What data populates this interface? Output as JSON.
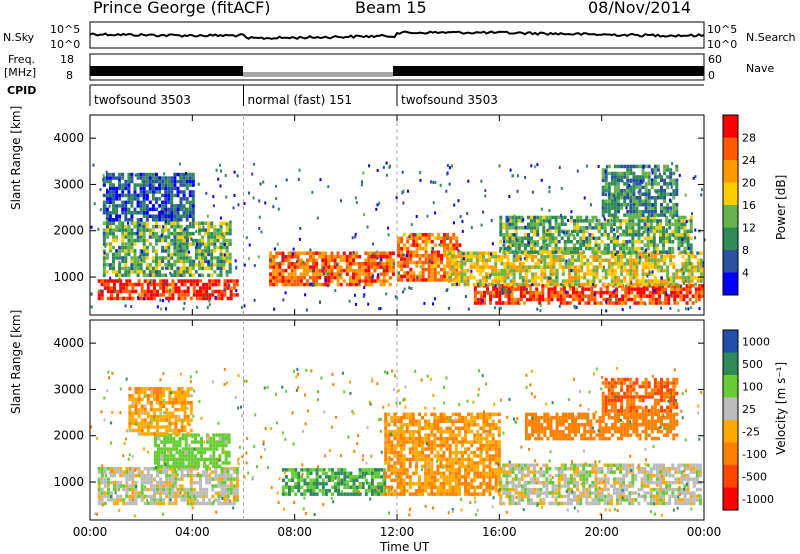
{
  "header": {
    "station": "Prince George (fitACF)",
    "beam": "Beam 15",
    "date": "08/Nov/2014"
  },
  "left_labels": {
    "nsky": "N.Sky",
    "freq_line1": "Freq.",
    "freq_line2": "[MHz]",
    "cpid": "CPID"
  },
  "right_labels": {
    "nsearch": "N.Search",
    "nave": "Nave"
  },
  "noise_panel": {
    "y_ticks": [
      "10^5",
      "10^0"
    ],
    "right_ticks": [
      "10^5",
      "10^0"
    ]
  },
  "freq_panel": {
    "left_ticks": [
      "18",
      "8"
    ],
    "right_ticks": [
      "60",
      "0"
    ]
  },
  "cpid_segments": [
    {
      "label": "twofsound 3503",
      "start": 0,
      "end": 6
    },
    {
      "label": "normal (fast) 151",
      "start": 6,
      "end": 12
    },
    {
      "label": "twofsound 3503",
      "start": 12,
      "end": 24
    }
  ],
  "x_ticks": [
    "00:00",
    "04:00",
    "08:00",
    "12:00",
    "16:00",
    "20:00",
    "00:00"
  ],
  "x_label": "Time UT",
  "y_ticks": [
    "4000",
    "3000",
    "2000",
    "1000"
  ],
  "power_panel": {
    "ylabel": "Slant Range [km]",
    "cbar_title": "Power [dB]",
    "cbar_ticks": [
      "28",
      "24",
      "20",
      "16",
      "12",
      "8",
      "4"
    ],
    "cbar_colors": [
      "#ff0000",
      "#ff5a00",
      "#ff9900",
      "#ffcc00",
      "#66b34d",
      "#2e8b57",
      "#2952a3",
      "#0000ff"
    ]
  },
  "velocity_panel": {
    "ylabel": "Slant Range [km]",
    "cbar_title": "Velocity [m s⁻¹]",
    "cbar_ticks": [
      "1000",
      "500",
      "100",
      "25",
      "-25",
      "-100",
      "-500",
      "-1000"
    ],
    "cbar_colors": [
      "#1f4fa8",
      "#2e8b57",
      "#66cc33",
      "#bbbbbb",
      "#ffaa00",
      "#ff7f00",
      "#ff4500",
      "#ff0000"
    ]
  },
  "chart_data": {
    "type": "heatmap",
    "x_range": [
      "00:00",
      "24:00"
    ],
    "y_range_km": [
      180,
      4500
    ],
    "panels": [
      {
        "name": "Power",
        "units": "dB",
        "range": [
          0,
          30
        ],
        "bands": [
          {
            "t0": 0.3,
            "t1": 5.8,
            "r0": 500,
            "r1": 900,
            "value": 27
          },
          {
            "t0": 0.5,
            "t1": 5.5,
            "r0": 1000,
            "r1": 2200,
            "value": 12
          },
          {
            "t0": 0.5,
            "t1": 4.0,
            "r0": 2200,
            "r1": 3200,
            "value": 6
          },
          {
            "t0": 7.0,
            "t1": 11.8,
            "r0": 800,
            "r1": 1500,
            "value": 24
          },
          {
            "t0": 12.0,
            "t1": 14.5,
            "r0": 900,
            "r1": 1900,
            "value": 23
          },
          {
            "t0": 15.0,
            "t1": 23.9,
            "r0": 400,
            "r1": 800,
            "value": 26
          },
          {
            "t0": 14.0,
            "t1": 23.9,
            "r0": 800,
            "r1": 1500,
            "value": 17
          },
          {
            "t0": 16.0,
            "t1": 23.5,
            "r0": 1500,
            "r1": 2300,
            "value": 12
          },
          {
            "t0": 20.0,
            "t1": 23.0,
            "r0": 2300,
            "r1": 3400,
            "value": 9
          }
        ]
      },
      {
        "name": "Velocity",
        "units": "m s-1",
        "range": [
          -1000,
          1000
        ],
        "bands": [
          {
            "t0": 0.3,
            "t1": 5.8,
            "r0": 500,
            "r1": 1300,
            "value": 0
          },
          {
            "t0": 2.5,
            "t1": 5.5,
            "r0": 1300,
            "r1": 2000,
            "value": 150
          },
          {
            "t0": 1.5,
            "t1": 4.0,
            "r0": 2000,
            "r1": 3000,
            "value": -150
          },
          {
            "t0": 7.5,
            "t1": 11.5,
            "r0": 700,
            "r1": 1300,
            "value": 300
          },
          {
            "t0": 11.5,
            "t1": 16.0,
            "r0": 700,
            "r1": 2500,
            "value": -200
          },
          {
            "t0": 16.0,
            "t1": 23.9,
            "r0": 500,
            "r1": 1400,
            "value": 0
          },
          {
            "t0": 17.0,
            "t1": 23.0,
            "r0": 1900,
            "r1": 2500,
            "value": -300
          },
          {
            "t0": 20.0,
            "t1": 23.0,
            "r0": 2500,
            "r1": 3200,
            "value": -400
          }
        ]
      }
    ]
  }
}
